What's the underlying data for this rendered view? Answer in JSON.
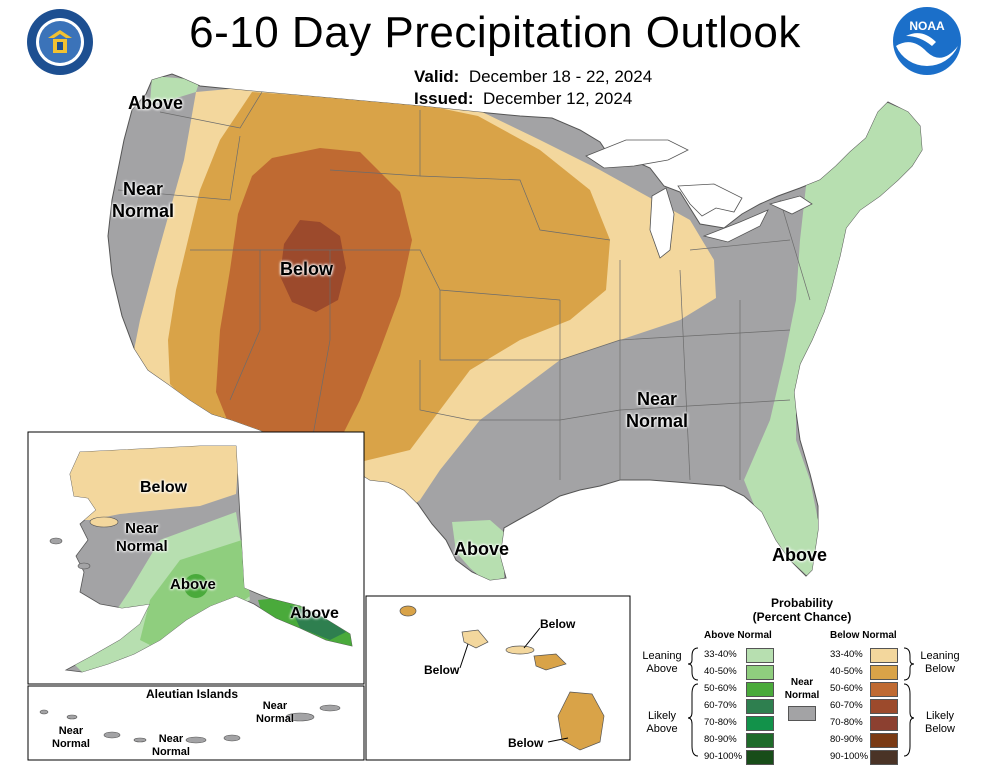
{
  "title": "6-10 Day Precipitation Outlook",
  "valid_label": "Valid:",
  "valid_dates": "December 18 - 22, 2024",
  "issued_label": "Issued:",
  "issued_date": "December 12, 2024",
  "colors": {
    "near_normal": "#a3a3a5",
    "below_33_40": "#f3d79d",
    "below_40_50": "#d9a348",
    "below_50_60": "#bf6a32",
    "below_60_70": "#9c4a2c",
    "above_33_40": "#b7dfb0",
    "above_40_50": "#8fce7e",
    "above_50_60": "#4aaa3b",
    "above_60_70": "#2e7f4f",
    "above_70_80": "#12924a",
    "above_80_90": "#1e6b2a",
    "above_90_100": "#184d19"
  },
  "conus": {
    "labels": {
      "above_nw": "Above",
      "near_normal_west": "Near\nNormal",
      "below_center": "Below",
      "near_normal_se": "Near\nNormal",
      "above_tx": "Above",
      "above_fl": "Above"
    }
  },
  "alaska": {
    "below": "Below",
    "near_normal": "Near\nNormal",
    "above_center": "Above",
    "above_se": "Above"
  },
  "aleutians": {
    "title": "Aleutian Islands",
    "near_normal_1": "Near\nNormal",
    "near_normal_2": "Near\nNormal",
    "near_normal_3": "Near\nNormal"
  },
  "hawaii": {
    "below_1": "Below",
    "below_2": "Below",
    "below_3": "Below"
  },
  "legend": {
    "title": "Probability\n(Percent Chance)",
    "above_header": "Above Normal",
    "below_header": "Below Normal",
    "near_normal": "Near\nNormal",
    "leaning_above": "Leaning\nAbove",
    "likely_above": "Likely\nAbove",
    "leaning_below": "Leaning\nBelow",
    "likely_below": "Likely\nBelow",
    "above_bins": [
      {
        "label": "33-40%",
        "color": "#b7dfb0"
      },
      {
        "label": "40-50%",
        "color": "#8fce7e"
      },
      {
        "label": "50-60%",
        "color": "#4aaa3b"
      },
      {
        "label": "60-70%",
        "color": "#2e7f4f"
      },
      {
        "label": "70-80%",
        "color": "#12924a"
      },
      {
        "label": "80-90%",
        "color": "#1e6b2a"
      },
      {
        "label": "90-100%",
        "color": "#184d19"
      }
    ],
    "below_bins": [
      {
        "label": "33-40%",
        "color": "#f3d79d"
      },
      {
        "label": "40-50%",
        "color": "#d9a348"
      },
      {
        "label": "50-60%",
        "color": "#bf6a32"
      },
      {
        "label": "60-70%",
        "color": "#9c4a2c"
      },
      {
        "label": "70-80%",
        "color": "#8c4030"
      },
      {
        "label": "80-90%",
        "color": "#7a3a14"
      },
      {
        "label": "90-100%",
        "color": "#4a3326"
      }
    ]
  }
}
